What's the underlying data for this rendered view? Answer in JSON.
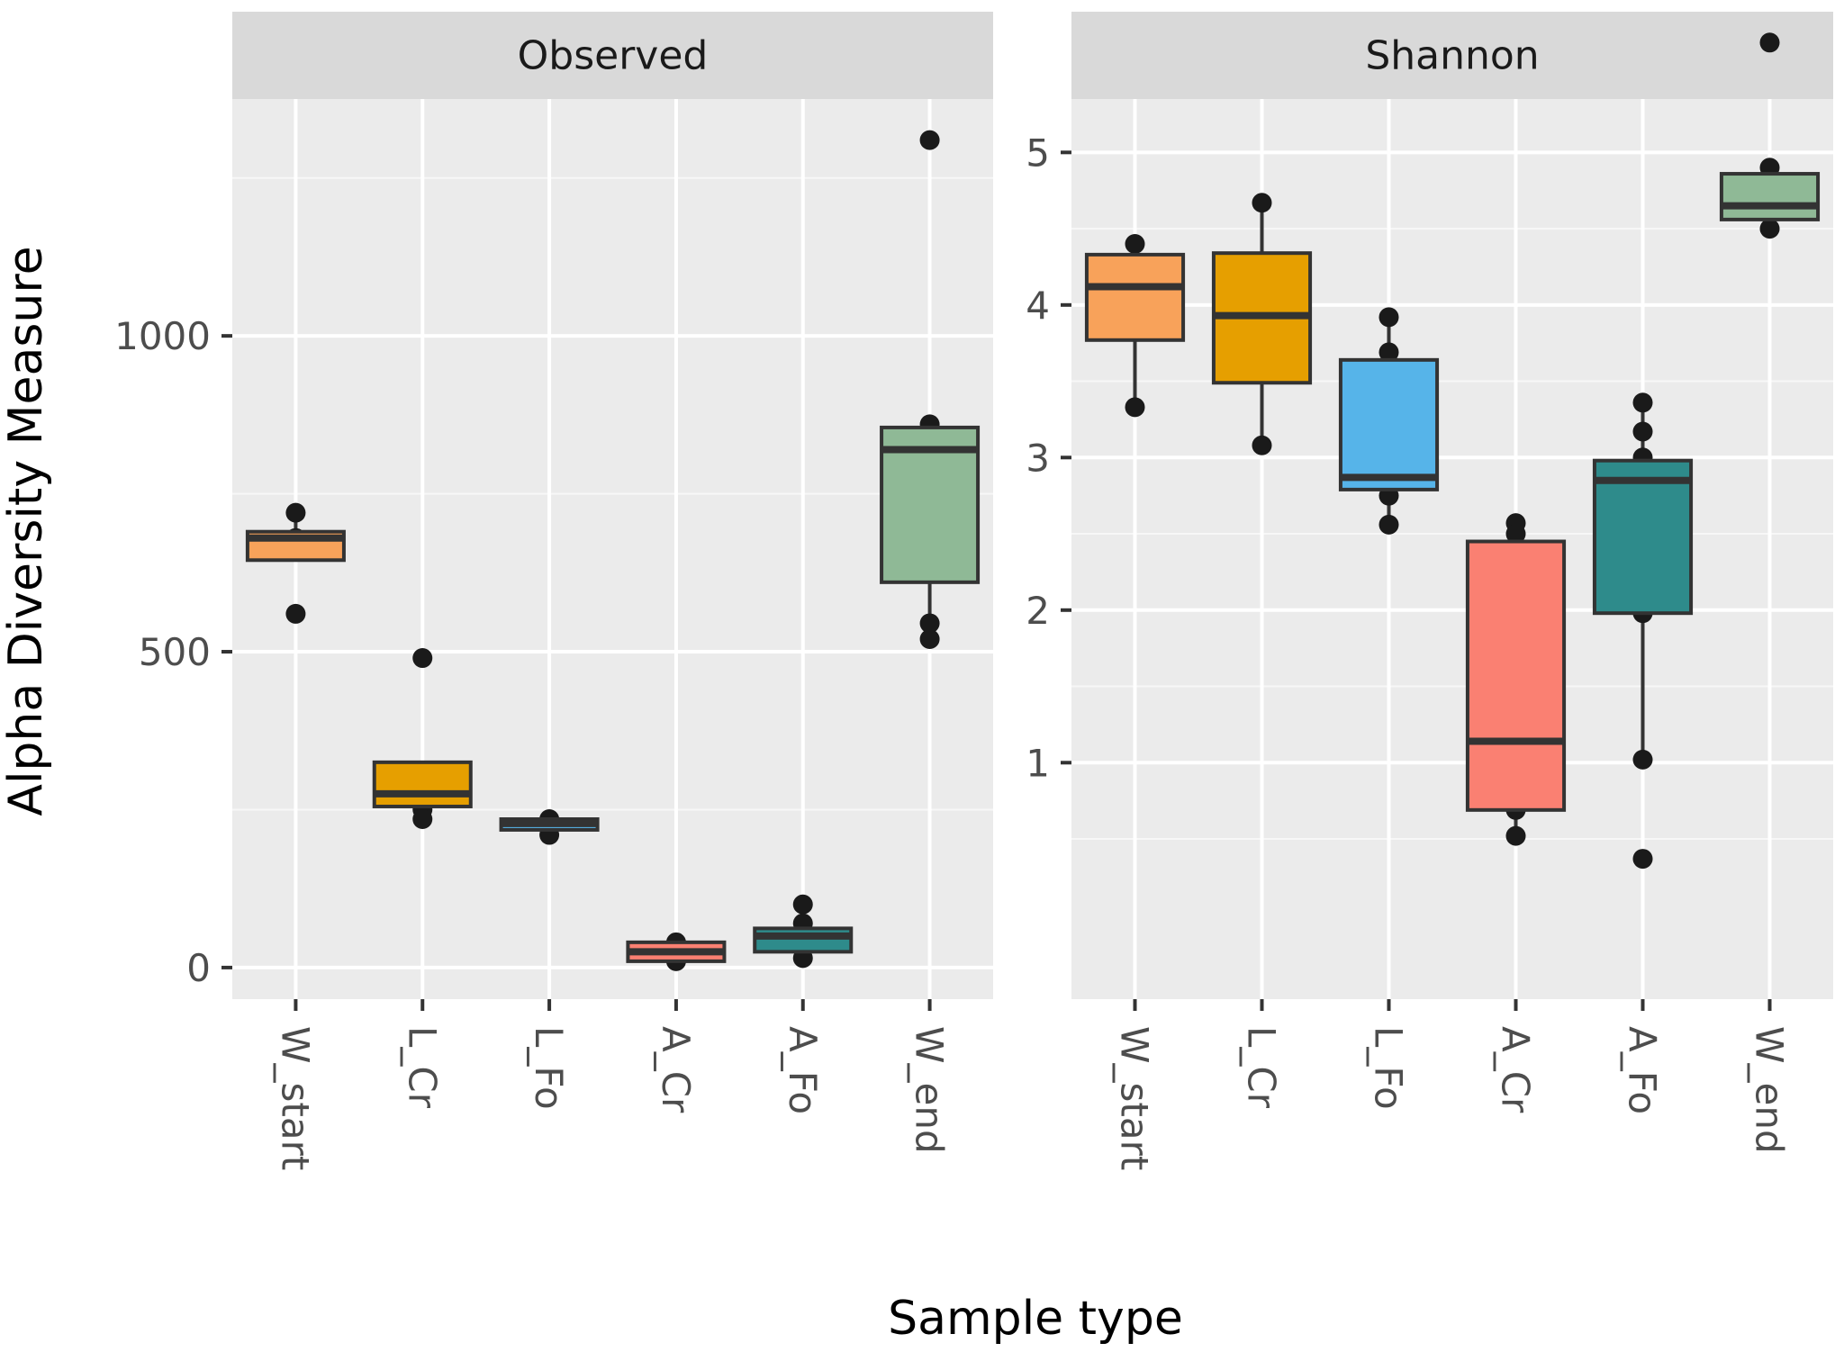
{
  "chart_data": {
    "type": "boxplot",
    "xlabel": "Sample type",
    "ylabel": "Alpha Diversity Measure",
    "categories": [
      "W_start",
      "L_Cr",
      "L_Fo",
      "A_Cr",
      "A_Fo",
      "W_end"
    ],
    "colors": {
      "W_start": "#F8A25A",
      "L_Cr": "#E69F00",
      "L_Fo": "#56B4E9",
      "A_Cr": "#FA8072",
      "A_Fo": "#2E8B8B",
      "W_end": "#8FB996"
    },
    "panels": [
      {
        "name": "Observed",
        "ylim": [
          -50,
          1375
        ],
        "yticks": [
          0,
          500,
          1000
        ],
        "ytick_labels": [
          "0",
          "500",
          "1000"
        ],
        "boxes": [
          {
            "category": "W_start",
            "q1": 645,
            "median": 680,
            "q3": 690,
            "whisker_low": 645,
            "whisker_high": 720,
            "points": [
              720,
              680,
              560
            ]
          },
          {
            "category": "L_Cr",
            "q1": 255,
            "median": 275,
            "q3": 325,
            "whisker_low": 235,
            "whisker_high": 325,
            "points": [
              490,
              250,
              235
            ]
          },
          {
            "category": "L_Fo",
            "q1": 218,
            "median": 228,
            "q3": 235,
            "whisker_low": 210,
            "whisker_high": 240,
            "points": [
              235,
              220,
              210
            ]
          },
          {
            "category": "A_Cr",
            "q1": 10,
            "median": 25,
            "q3": 40,
            "whisker_low": 8,
            "whisker_high": 40,
            "points": [
              40,
              25,
              10
            ]
          },
          {
            "category": "A_Fo",
            "q1": 25,
            "median": 50,
            "q3": 62,
            "whisker_low": 15,
            "whisker_high": 100,
            "points": [
              100,
              70,
              50,
              15
            ]
          },
          {
            "category": "W_end",
            "q1": 610,
            "median": 820,
            "q3": 855,
            "whisker_low": 520,
            "whisker_high": 860,
            "points": [
              1310,
              860,
              545,
              520
            ]
          }
        ]
      },
      {
        "name": "Shannon",
        "ylim": [
          -0.55,
          5.35
        ],
        "yticks": [
          1,
          2,
          3,
          4,
          5
        ],
        "ytick_labels": [
          "1",
          "2",
          "3",
          "4",
          "5"
        ],
        "boxes": [
          {
            "category": "W_start",
            "q1": 3.77,
            "median": 4.12,
            "q3": 4.33,
            "whisker_low": 3.33,
            "whisker_high": 4.4,
            "points": [
              4.4,
              4.15,
              3.33
            ]
          },
          {
            "category": "L_Cr",
            "q1": 3.49,
            "median": 3.93,
            "q3": 4.34,
            "whisker_low": 3.08,
            "whisker_high": 4.67,
            "points": [
              4.67,
              3.95,
              3.08
            ]
          },
          {
            "category": "L_Fo",
            "q1": 2.79,
            "median": 2.87,
            "q3": 3.64,
            "whisker_low": 2.56,
            "whisker_high": 3.92,
            "points": [
              3.92,
              3.69,
              2.75,
              2.56
            ]
          },
          {
            "category": "A_Cr",
            "q1": 0.69,
            "median": 1.14,
            "q3": 2.45,
            "whisker_low": 0.52,
            "whisker_high": 2.57,
            "points": [
              2.57,
              2.5,
              0.69,
              0.52
            ]
          },
          {
            "category": "A_Fo",
            "q1": 1.98,
            "median": 2.85,
            "q3": 2.98,
            "whisker_low": 1.02,
            "whisker_high": 3.36,
            "points": [
              3.36,
              3.17,
              3.0,
              1.98,
              1.02,
              0.37
            ]
          },
          {
            "category": "W_end",
            "q1": 4.56,
            "median": 4.65,
            "q3": 4.86,
            "whisker_low": 4.5,
            "whisker_high": 4.9,
            "points": [
              5.72,
              4.9,
              4.5
            ]
          }
        ]
      }
    ]
  }
}
